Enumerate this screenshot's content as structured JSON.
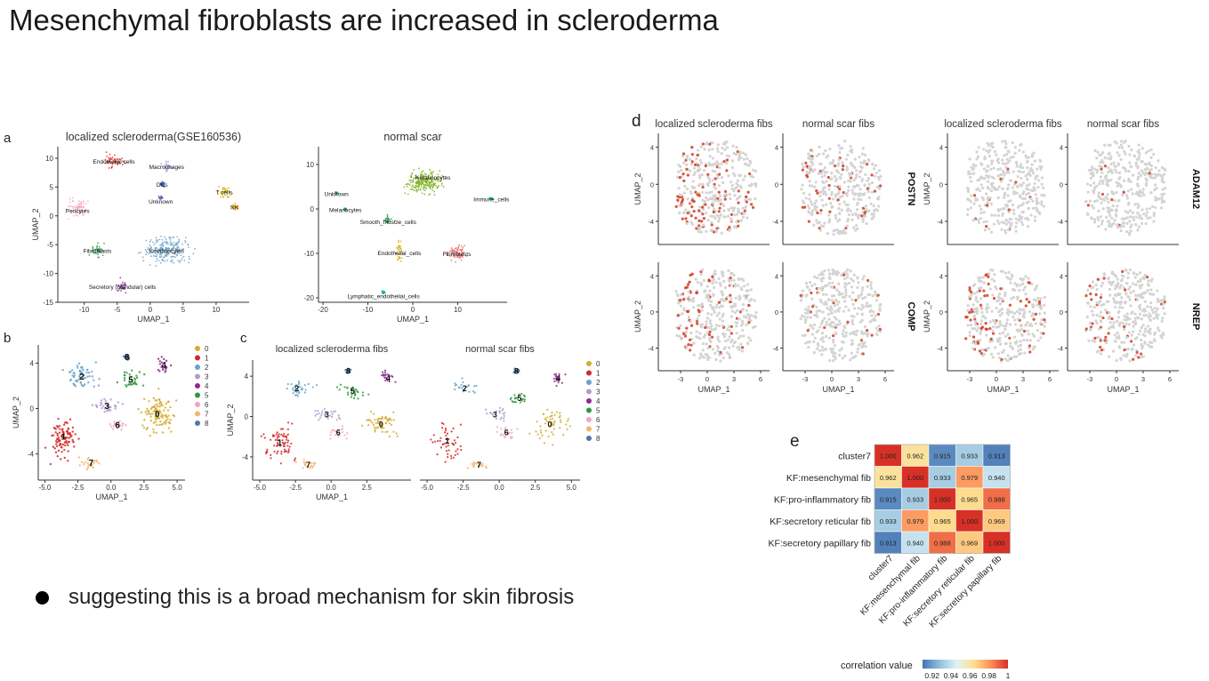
{
  "slide": {
    "title": "Mesenchymal fibroblasts are increased in scleroderma",
    "bullet": "suggesting this is a broad mechanism for skin fibrosis"
  },
  "panels": {
    "a": "a",
    "b": "b",
    "c": "c",
    "d": "d",
    "e": "e"
  },
  "chart_data": [
    {
      "id": "a-left",
      "type": "scatter",
      "title": "localized scleroderma(GSE160536)",
      "xlabel": "UMAP_1",
      "ylabel": "UMAP_2",
      "xlim": [
        -14,
        15
      ],
      "ylim": [
        -15,
        12
      ],
      "xticks": [
        -10,
        -5,
        0,
        5,
        10
      ],
      "yticks": [
        -15,
        -10,
        -5,
        0,
        5,
        10
      ],
      "clusters": [
        {
          "name": "Endothelial cells",
          "x": -5.5,
          "y": 9.5,
          "rx": 2.4,
          "ry": 1.6,
          "color": "#d73027",
          "lx": -5.5,
          "ly": 9.5
        },
        {
          "name": "Macrophages",
          "x": 2.5,
          "y": 8.6,
          "rx": 1.3,
          "ry": 1.3,
          "color": "#b39ddb",
          "lx": 2.5,
          "ly": 8.6
        },
        {
          "name": "DCs",
          "x": 1.8,
          "y": 5.5,
          "rx": 0.6,
          "ry": 0.7,
          "color": "#3f51b5",
          "lx": 1.8,
          "ly": 5.5
        },
        {
          "name": "Unknown",
          "x": 1.6,
          "y": 3.2,
          "rx": 0.4,
          "ry": 0.5,
          "color": "#5c6bc0",
          "lx": 1.6,
          "ly": 2.6
        },
        {
          "name": "T cells",
          "x": 11.2,
          "y": 4.2,
          "rx": 1.7,
          "ry": 1.4,
          "color": "#d4b400",
          "lx": 11.2,
          "ly": 4.2
        },
        {
          "name": "NK",
          "x": 12.8,
          "y": 1.6,
          "rx": 0.9,
          "ry": 0.9,
          "color": "#f4a700",
          "lx": 12.8,
          "ly": 1.6
        },
        {
          "name": "Pericytes",
          "x": -11.0,
          "y": 1.5,
          "rx": 2.0,
          "ry": 2.2,
          "color": "#f2a7c0",
          "lx": -11.0,
          "ly": 1.0
        },
        {
          "name": "Keratinocytes",
          "x": 2.5,
          "y": -6.0,
          "rx": 5.0,
          "ry": 3.2,
          "color": "#6aa3c8",
          "lx": 2.5,
          "ly": -6.0
        },
        {
          "name": "Fibroblasts",
          "x": -8.0,
          "y": -6.0,
          "rx": 1.6,
          "ry": 1.6,
          "color": "#2e9a4a",
          "lx": -8.0,
          "ly": -6.0
        },
        {
          "name": "Secretory (glandular) cells",
          "x": -4.2,
          "y": -12.2,
          "rx": 1.2,
          "ry": 1.6,
          "color": "#7b2d8b",
          "lx": -4.2,
          "ly": -12.2
        }
      ]
    },
    {
      "id": "a-right",
      "type": "scatter",
      "title": "normal scar",
      "xlabel": "UMAP_1",
      "ylabel": "",
      "xlim": [
        -21,
        21
      ],
      "ylim": [
        -21,
        14
      ],
      "xticks": [
        -20,
        -10,
        0,
        10
      ],
      "yticks": [
        -20,
        -10,
        0,
        10
      ],
      "clusters": [
        {
          "name": "Keratinocytes",
          "x": 2.5,
          "y": 6.0,
          "rx": 6.0,
          "ry": 3.6,
          "color": "#7cae1a",
          "lx": 4.5,
          "ly": 7.2
        },
        {
          "name": "Unknown",
          "x": -17.0,
          "y": 3.5,
          "rx": 0.4,
          "ry": 0.4,
          "color": "#2e9a4a",
          "lx": -17.0,
          "ly": 3.5
        },
        {
          "name": "Melanocytes",
          "x": -15.0,
          "y": -0.1,
          "rx": 0.4,
          "ry": 0.4,
          "color": "#2e9a4a",
          "lx": -15.0,
          "ly": -0.1
        },
        {
          "name": "Smooth_muscle_cells",
          "x": -5.5,
          "y": -2.5,
          "rx": 1.6,
          "ry": 1.4,
          "color": "#1e8f4e",
          "lx": -5.5,
          "ly": -2.8
        },
        {
          "name": "Immune_cells",
          "x": 17.5,
          "y": 2.3,
          "rx": 0.6,
          "ry": 0.4,
          "color": "#26b3a8",
          "lx": 17.5,
          "ly": 2.3
        },
        {
          "name": "Endothelial_cells",
          "x": -3.0,
          "y": -9.5,
          "rx": 1.0,
          "ry": 3.0,
          "color": "#d4a800",
          "lx": -3.0,
          "ly": -9.8
        },
        {
          "name": "Fibroblasts",
          "x": 9.8,
          "y": -10.0,
          "rx": 3.0,
          "ry": 2.6,
          "color": "#e8716e",
          "lx": 9.8,
          "ly": -10.0
        },
        {
          "name": "Lymphatic_endothelial_cells",
          "x": -6.5,
          "y": -18.8,
          "rx": 0.6,
          "ry": 0.5,
          "color": "#26b3a8",
          "lx": -6.5,
          "ly": -19.5
        }
      ]
    },
    {
      "id": "b",
      "type": "scatter",
      "title": "",
      "xlabel": "UMAP_1",
      "ylabel": "UMAP_2",
      "xlim": [
        -5.5,
        5.6
      ],
      "ylim": [
        -6.3,
        5.6
      ],
      "xticks": [
        -5.0,
        -2.5,
        0.0,
        2.5,
        5.0
      ],
      "yticks": [
        -4,
        0,
        4
      ],
      "legend": [
        "0",
        "1",
        "2",
        "3",
        "4",
        "5",
        "6",
        "7",
        "8"
      ],
      "clusters": [
        {
          "name": "0",
          "x": 3.5,
          "y": -0.5,
          "rx": 1.8,
          "ry": 2.6,
          "color": "#d4ad2b"
        },
        {
          "name": "1",
          "x": -3.6,
          "y": -2.5,
          "rx": 1.5,
          "ry": 2.8,
          "color": "#d62728"
        },
        {
          "name": "2",
          "x": -2.2,
          "y": 2.8,
          "rx": 1.8,
          "ry": 1.5,
          "color": "#6aa3c8"
        },
        {
          "name": "3",
          "x": -0.3,
          "y": 0.2,
          "rx": 1.4,
          "ry": 1.1,
          "color": "#b19cd0"
        },
        {
          "name": "4",
          "x": 4.0,
          "y": 3.8,
          "rx": 0.8,
          "ry": 1.0,
          "color": "#8e2a8e"
        },
        {
          "name": "5",
          "x": 1.5,
          "y": 2.5,
          "rx": 1.3,
          "ry": 1.1,
          "color": "#2e9a3a"
        },
        {
          "name": "6",
          "x": 0.5,
          "y": -1.5,
          "rx": 1.0,
          "ry": 0.8,
          "color": "#f5a3c1"
        },
        {
          "name": "7",
          "x": -1.5,
          "y": -4.8,
          "rx": 1.1,
          "ry": 0.7,
          "color": "#f7b36b"
        },
        {
          "name": "8",
          "x": 1.2,
          "y": 4.5,
          "rx": 0.3,
          "ry": 0.3,
          "color": "#4f78a8"
        }
      ]
    },
    {
      "id": "c-left",
      "type": "scatter",
      "title": "localized scleroderma fibs",
      "xlabel": "UMAP_1",
      "ylabel": "UMAP_2",
      "xlim": [
        -5.5,
        5.6
      ],
      "ylim": [
        -6.3,
        5.6
      ],
      "xticks": [
        -5.0,
        -2.5,
        0.0,
        2.5
      ],
      "yticks": [
        -4,
        0,
        4
      ],
      "clusters": [
        {
          "name": "0",
          "x": 3.5,
          "y": -0.8,
          "rx": 1.6,
          "ry": 2.0,
          "color": "#d4ad2b"
        },
        {
          "name": "1",
          "x": -3.6,
          "y": -2.6,
          "rx": 1.5,
          "ry": 2.6,
          "color": "#d62728"
        },
        {
          "name": "2",
          "x": -2.4,
          "y": 2.8,
          "rx": 1.5,
          "ry": 1.2,
          "color": "#6aa3c8"
        },
        {
          "name": "3",
          "x": -0.3,
          "y": 0.2,
          "rx": 1.4,
          "ry": 1.0,
          "color": "#b19cd0"
        },
        {
          "name": "4",
          "x": 4.0,
          "y": 3.8,
          "rx": 0.9,
          "ry": 1.0,
          "color": "#8e2a8e"
        },
        {
          "name": "5",
          "x": 1.5,
          "y": 2.5,
          "rx": 1.4,
          "ry": 1.1,
          "color": "#2e9a3a"
        },
        {
          "name": "6",
          "x": 0.5,
          "y": -1.6,
          "rx": 1.0,
          "ry": 0.8,
          "color": "#f5a3c1"
        },
        {
          "name": "7",
          "x": -1.6,
          "y": -4.8,
          "rx": 1.0,
          "ry": 0.6,
          "color": "#f7b36b"
        },
        {
          "name": "8",
          "x": 1.2,
          "y": 4.5,
          "rx": 0.3,
          "ry": 0.3,
          "color": "#4f78a8"
        }
      ]
    },
    {
      "id": "c-right",
      "type": "scatter",
      "title": "normal scar fibs",
      "xlabel": "",
      "ylabel": "",
      "xlim": [
        -5.5,
        5.6
      ],
      "ylim": [
        -6.3,
        5.6
      ],
      "xticks": [
        -5.0,
        -2.5,
        0.0,
        2.5,
        5.0
      ],
      "yticks": [],
      "legend": [
        "0",
        "1",
        "2",
        "3",
        "4",
        "5",
        "6",
        "7",
        "8"
      ],
      "clusters": [
        {
          "name": "0",
          "x": 3.5,
          "y": -0.8,
          "rx": 1.8,
          "ry": 2.4,
          "color": "#d4ad2b"
        },
        {
          "name": "1",
          "x": -3.6,
          "y": -2.4,
          "rx": 1.5,
          "ry": 2.7,
          "color": "#d62728"
        },
        {
          "name": "2",
          "x": -2.4,
          "y": 2.8,
          "rx": 1.2,
          "ry": 1.2,
          "color": "#6aa3c8"
        },
        {
          "name": "3",
          "x": -0.3,
          "y": 0.2,
          "rx": 1.2,
          "ry": 1.0,
          "color": "#b19cd0"
        },
        {
          "name": "4",
          "x": 4.1,
          "y": 3.8,
          "rx": 0.6,
          "ry": 0.8,
          "color": "#8e2a8e"
        },
        {
          "name": "5",
          "x": 1.4,
          "y": 1.8,
          "rx": 0.9,
          "ry": 0.8,
          "color": "#2e9a3a"
        },
        {
          "name": "6",
          "x": 0.5,
          "y": -1.6,
          "rx": 1.0,
          "ry": 0.8,
          "color": "#f5a3c1"
        },
        {
          "name": "7",
          "x": -1.4,
          "y": -4.8,
          "rx": 1.0,
          "ry": 0.6,
          "color": "#f7b36b"
        },
        {
          "name": "8",
          "x": 1.2,
          "y": 4.5,
          "rx": 0.3,
          "ry": 0.3,
          "color": "#4f78a8"
        }
      ]
    },
    {
      "id": "d",
      "type": "scatter",
      "xlabel": "UMAP_1",
      "ylabel": "UMAP_2",
      "xlim": [
        -5.5,
        7
      ],
      "ylim": [
        -6.5,
        5.5
      ],
      "xticks": [
        -3,
        0,
        3,
        6
      ],
      "yticks": [
        -4,
        0,
        4
      ],
      "column_titles": [
        "localized scleroderma fibs",
        "normal scar fibs",
        "localized scleroderma fibs",
        "normal scar fibs"
      ],
      "genes": [
        "POSTN",
        "ADAM12",
        "COMP",
        "NREP"
      ],
      "base_color": "#d4d4d4",
      "high_color": "#d23a1e"
    },
    {
      "id": "e",
      "type": "heatmap",
      "rows": [
        "cluster7",
        "KF:mesenchymal fib",
        "KF:pro-inflammatory fib",
        "KF:secretory reticular fib",
        "KF:secretory papillary fib"
      ],
      "columns": [
        "cluster7",
        "KF:mesenchymal fib",
        "KF:pro-inflammatory fib",
        "KF:secretory reticular fib",
        "KF:secretory papillary fib"
      ],
      "values": [
        [
          "1.000",
          "0.962",
          "0.915",
          "0.933",
          "0.913"
        ],
        [
          "0.962",
          "1.000",
          "0.933",
          "0.979",
          "0.940"
        ],
        [
          "0.915",
          "0.933",
          "1.000",
          "0.965",
          "0.988"
        ],
        [
          "0.933",
          "0.979",
          "0.965",
          "1.000",
          "0.969"
        ],
        [
          "0.913",
          "0.940",
          "0.988",
          "0.969",
          "1.000"
        ]
      ],
      "legend_title": "correlation value",
      "legend_ticks": [
        "0.92",
        "0.94",
        "0.96",
        "0.98",
        "1"
      ],
      "range": [
        0.91,
        1.0
      ],
      "colors": [
        "#4575b4",
        "#91bfdb",
        "#e0f3f8",
        "#fee090",
        "#fc8d59",
        "#d73027"
      ]
    }
  ]
}
